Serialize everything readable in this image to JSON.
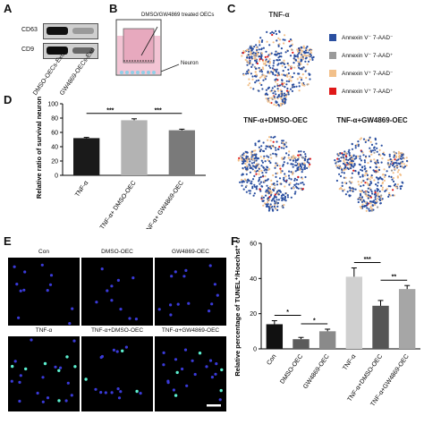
{
  "panels": {
    "A": {
      "label": "A",
      "bands": [
        "CD63",
        "CD9"
      ],
      "lanes": [
        "DMSO-OECs-Exo",
        "GW4869-OECs-Exo"
      ]
    },
    "B": {
      "label": "B",
      "top_label": "DMSO/GW4869 treated OECs",
      "bottom_label": "Neuron"
    },
    "C": {
      "label": "C",
      "titles": [
        "TNF-α",
        "TNF-α+DMSO-OEC",
        "TNF-α+GW4869-OEC"
      ],
      "legend": [
        {
          "text": "Annexin V⁻ 7-AAD⁻",
          "color": "#2a4fa0"
        },
        {
          "text": "Annexin V⁻ 7-AAD⁺",
          "color": "#9a9a9a"
        },
        {
          "text": "Annexin V⁺ 7-AAD⁻",
          "color": "#f2c08a"
        },
        {
          "text": "Annexin V⁺ 7-AAD⁺",
          "color": "#e01818"
        }
      ]
    },
    "D": {
      "label": "D"
    },
    "E": {
      "label": "E",
      "captions": [
        "Con",
        "DMSO-OEC",
        "GW4869-OEC",
        "TNF-α",
        "TNF-α+DMSO-OEC",
        "TNF-α+GW4869-OEC"
      ]
    },
    "F": {
      "label": "F"
    }
  },
  "chart_data": [
    {
      "type": "bar",
      "panel": "D",
      "categories": [
        "TNF-α",
        "TNF-α+ DMSO-OEC",
        "TNF-α+ GW4869-OEC"
      ],
      "values": [
        52,
        77,
        63
      ],
      "errors": [
        1,
        2,
        1.5
      ],
      "colors": [
        "#1a1a1a",
        "#b3b3b3",
        "#7a7a7a"
      ],
      "ylabel": "Relative ratio of survival neurons (%)",
      "ylim": [
        0,
        100
      ],
      "yticks": [
        0,
        20,
        40,
        60,
        80,
        100
      ],
      "significance": [
        {
          "from": 0,
          "to": 1,
          "text": "***"
        },
        {
          "from": 1,
          "to": 2,
          "text": "***"
        }
      ]
    },
    {
      "type": "bar",
      "panel": "F",
      "categories": [
        "Con",
        "DMSO-OEC",
        "GW4869-OEC",
        "TNF-α",
        "TNF-α+DMSO-OEC",
        "TNF-α+GW4869-OEC"
      ],
      "values": [
        14,
        5.5,
        10,
        41,
        24.5,
        34
      ],
      "errors": [
        2,
        1,
        1.2,
        5,
        3,
        2
      ],
      "colors": [
        "#111111",
        "#5b5b5b",
        "#8a8a8a",
        "#d0d0d0",
        "#555555",
        "#a6a6a6"
      ],
      "ylabel": "Relative percentage of TUNEL⁺/Hoechst⁺ cells (%)",
      "ylim": [
        0,
        60
      ],
      "yticks": [
        0,
        20,
        40,
        60
      ],
      "significance": [
        {
          "from": 0,
          "to": 1,
          "text": "*"
        },
        {
          "from": 1,
          "to": 2,
          "text": "*"
        },
        {
          "from": 3,
          "to": 4,
          "text": "***"
        },
        {
          "from": 4,
          "to": 5,
          "text": "**"
        }
      ]
    }
  ]
}
